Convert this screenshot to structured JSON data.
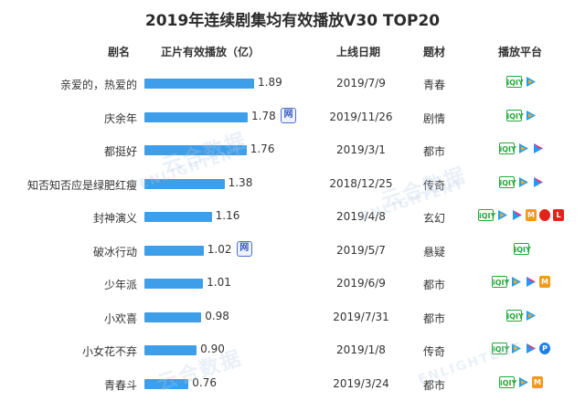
{
  "chart_data": {
    "type": "table",
    "title": "2019年连续剧集均有效播放V30 TOP20",
    "columns": [
      "剧名",
      "正片有效播放（亿）",
      "上线日期",
      "题材",
      "播放平台"
    ],
    "rows": [
      {
        "name": "亲爱的，热爱的",
        "value": 1.89,
        "value_label": "1.89",
        "date": "2019/7/9",
        "genre": "青春",
        "platforms": [
          "iqiyi",
          "tencent"
        ],
        "marker": ""
      },
      {
        "name": "庆余年",
        "value": 1.78,
        "value_label": "1.78",
        "date": "2019/11/26",
        "genre": "剧情",
        "platforms": [
          "iqiyi",
          "tencent"
        ],
        "marker": "网"
      },
      {
        "name": "都挺好",
        "value": 1.76,
        "value_label": "1.76",
        "date": "2019/3/1",
        "genre": "都市",
        "platforms": [
          "iqiyi",
          "tencent",
          "youku"
        ],
        "marker": ""
      },
      {
        "name": "知否知否应是绿肥红瘦",
        "value": 1.38,
        "value_label": "1.38",
        "date": "2018/12/25",
        "genre": "传奇",
        "platforms": [
          "iqiyi",
          "tencent",
          "youku"
        ],
        "marker": ""
      },
      {
        "name": "封神演义",
        "value": 1.16,
        "value_label": "1.16",
        "date": "2019/4/8",
        "genre": "玄幻",
        "platforms": [
          "iqiyi",
          "tencent",
          "youku",
          "mango",
          "sohu",
          "le"
        ],
        "marker": ""
      },
      {
        "name": "破冰行动",
        "value": 1.02,
        "value_label": "1.02",
        "date": "2019/5/7",
        "genre": "悬疑",
        "platforms": [
          "iqiyi"
        ],
        "marker": "网"
      },
      {
        "name": "少年派",
        "value": 1.01,
        "value_label": "1.01",
        "date": "2019/6/9",
        "genre": "都市",
        "platforms": [
          "iqiyi",
          "tencent",
          "youku",
          "mango"
        ],
        "marker": ""
      },
      {
        "name": "小欢喜",
        "value": 0.98,
        "value_label": "0.98",
        "date": "2019/7/31",
        "genre": "都市",
        "platforms": [
          "iqiyi",
          "tencent"
        ],
        "marker": ""
      },
      {
        "name": "小女花不弃",
        "value": 0.9,
        "value_label": "0.90",
        "date": "2019/1/8",
        "genre": "传奇",
        "platforms": [
          "iqiyi",
          "tencent",
          "youku",
          "pptv"
        ],
        "marker": ""
      },
      {
        "name": "青春斗",
        "value": 0.76,
        "value_label": "0.76",
        "date": "2019/3/24",
        "genre": "都市",
        "platforms": [
          "iqiyi",
          "tencent",
          "mango"
        ],
        "marker": ""
      }
    ],
    "bar_color": "#3d9ee9",
    "xlim": [
      0,
      1.89
    ]
  },
  "watermark": [
    "云合数据",
    "ENLIGHTENT"
  ],
  "platform_icons": {
    "iqiyi": {
      "text": "iQIY",
      "color": "#23a83a"
    },
    "tencent": {
      "text": "",
      "color": "#1fa0ec"
    },
    "youku": {
      "text": "",
      "color": "#1e9bff"
    },
    "mango": {
      "text": "M",
      "color": "#f29a1a"
    },
    "sohu": {
      "text": "",
      "color": "#e2231a"
    },
    "le": {
      "text": "L",
      "color": "#e2231a"
    },
    "pptv": {
      "text": "P",
      "color": "#1e7ee6"
    }
  }
}
